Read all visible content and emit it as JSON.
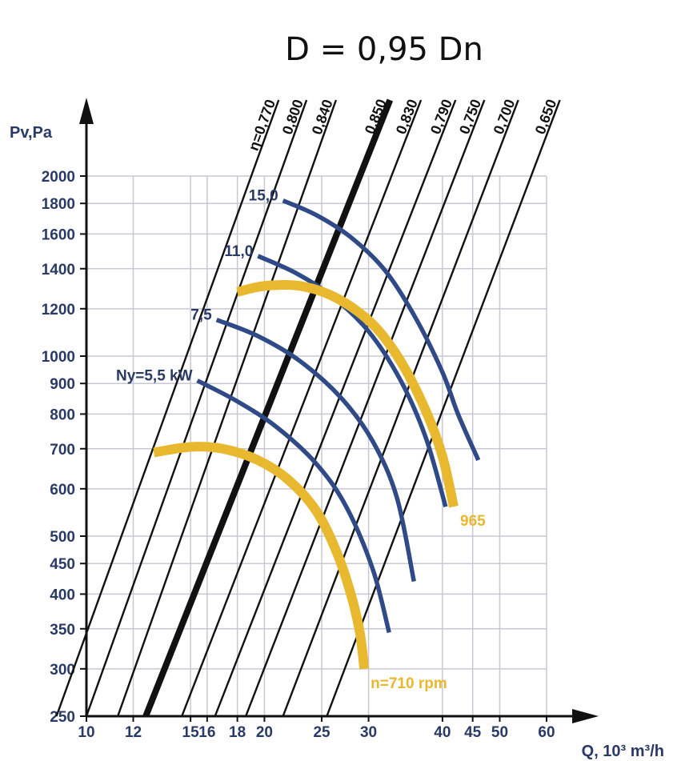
{
  "title": "D = 0,95 Dn",
  "chart_data": {
    "type": "line",
    "title": "D = 0,95 Dn",
    "xlabel": "Q, 10³ m³/h",
    "ylabel": "Pv,Pa",
    "x_scale": "log",
    "y_scale": "log",
    "xlim": [
      10,
      60
    ],
    "ylim": [
      250,
      2000
    ],
    "grid": true,
    "x_ticks": [
      10,
      12,
      15,
      16,
      18,
      20,
      25,
      30,
      40,
      45,
      50,
      60
    ],
    "y_ticks": [
      250,
      300,
      350,
      400,
      450,
      500,
      600,
      700,
      800,
      900,
      1000,
      1200,
      1400,
      1600,
      1800,
      2000
    ],
    "colors": {
      "efficiency": "#111111",
      "power": "#2f4a86",
      "rpm": "#e8b82e",
      "axis": "#111111",
      "grid": "#c8c8d4"
    },
    "efficiency_lines": [
      {
        "label": "η=0,770",
        "bold": false,
        "points": [
          [
            8.9,
            250
          ],
          [
            19.0,
            2000
          ]
        ]
      },
      {
        "label": "0,800",
        "bold": false,
        "points": [
          [
            10.0,
            250
          ],
          [
            21.2,
            2000
          ]
        ]
      },
      {
        "label": "0,840",
        "bold": false,
        "points": [
          [
            11.3,
            250
          ],
          [
            23.8,
            2000
          ]
        ]
      },
      {
        "label": "0,850",
        "bold": true,
        "points": [
          [
            12.6,
            250
          ],
          [
            29.0,
            2000
          ]
        ]
      },
      {
        "label": "0,830",
        "bold": false,
        "points": [
          [
            14.5,
            250
          ],
          [
            32.8,
            2000
          ]
        ]
      },
      {
        "label": "0,790",
        "bold": false,
        "points": [
          [
            16.5,
            250
          ],
          [
            37.5,
            2000
          ]
        ]
      },
      {
        "label": "0,750",
        "bold": false,
        "points": [
          [
            18.6,
            250
          ],
          [
            42.0,
            2000
          ]
        ]
      },
      {
        "label": "0,700",
        "bold": false,
        "points": [
          [
            21.5,
            250
          ],
          [
            48.0,
            2000
          ]
        ]
      },
      {
        "label": "0,650",
        "bold": false,
        "points": [
          [
            25.5,
            250
          ],
          [
            56.5,
            2000
          ]
        ]
      }
    ],
    "series": [
      {
        "name": "Ny=5,5 kW",
        "kind": "power",
        "points": [
          [
            15.4,
            910
          ],
          [
            18.0,
            840
          ],
          [
            21.0,
            760
          ],
          [
            24.5,
            660
          ],
          [
            27.5,
            560
          ],
          [
            30.5,
            440
          ],
          [
            32.5,
            345
          ]
        ]
      },
      {
        "name": "7,5",
        "kind": "power",
        "points": [
          [
            16.6,
            1150
          ],
          [
            19.5,
            1080
          ],
          [
            23.0,
            980
          ],
          [
            27.0,
            850
          ],
          [
            30.5,
            720
          ],
          [
            33.5,
            580
          ],
          [
            35.8,
            420
          ]
        ]
      },
      {
        "name": "11,0",
        "kind": "power",
        "points": [
          [
            19.5,
            1470
          ],
          [
            22.5,
            1380
          ],
          [
            26.0,
            1260
          ],
          [
            30.0,
            1100
          ],
          [
            34.0,
            910
          ],
          [
            37.5,
            730
          ],
          [
            40.5,
            560
          ]
        ]
      },
      {
        "name": "15,0",
        "kind": "power",
        "points": [
          [
            21.5,
            1820
          ],
          [
            24.5,
            1720
          ],
          [
            28.0,
            1580
          ],
          [
            32.0,
            1390
          ],
          [
            36.0,
            1160
          ],
          [
            40.0,
            940
          ],
          [
            42.5,
            800
          ],
          [
            46.0,
            670
          ]
        ]
      },
      {
        "name": "965",
        "kind": "rpm",
        "points": [
          [
            18.0,
            1280
          ],
          [
            20.0,
            1310
          ],
          [
            23.0,
            1310
          ],
          [
            26.5,
            1250
          ],
          [
            30.5,
            1130
          ],
          [
            34.0,
            980
          ],
          [
            37.5,
            810
          ],
          [
            40.0,
            680
          ],
          [
            41.8,
            560
          ]
        ]
      },
      {
        "name": "n=710 rpm",
        "kind": "rpm",
        "points": [
          [
            13.0,
            690
          ],
          [
            15.0,
            705
          ],
          [
            17.0,
            700
          ],
          [
            19.5,
            670
          ],
          [
            22.0,
            620
          ],
          [
            24.5,
            550
          ],
          [
            26.5,
            470
          ],
          [
            28.0,
            400
          ],
          [
            29.0,
            345
          ],
          [
            29.5,
            300
          ]
        ]
      }
    ]
  }
}
